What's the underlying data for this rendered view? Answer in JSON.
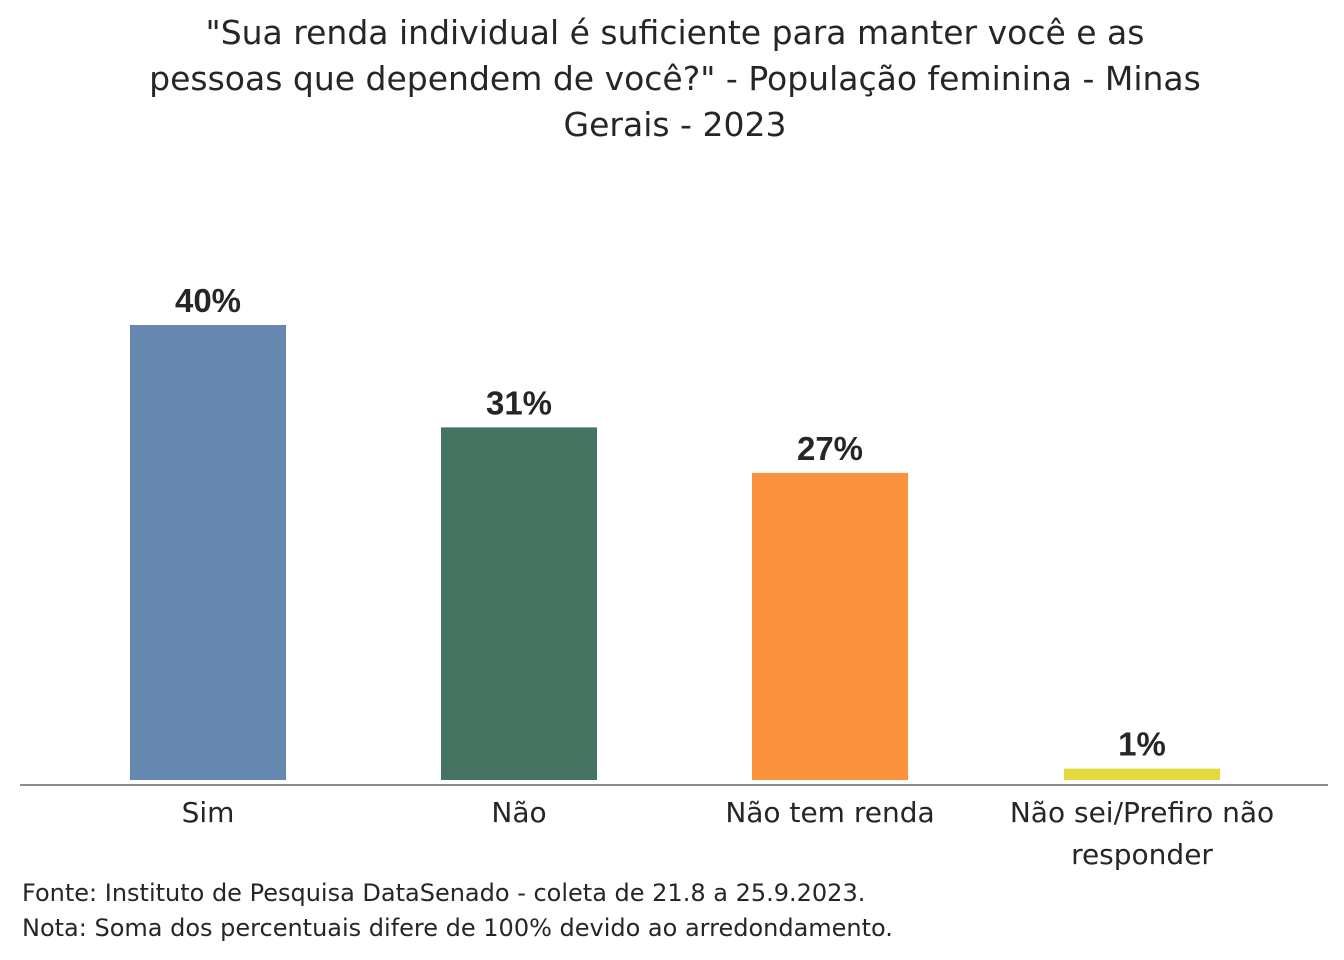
{
  "chart_data": {
    "type": "bar",
    "title_lines": [
      "\"Sua renda individual é suficiente para manter você e as",
      "pessoas que dependem de você?\" - População feminina - Minas",
      "Gerais - 2023"
    ],
    "categories": [
      [
        "Sim"
      ],
      [
        "Não"
      ],
      [
        "Não tem renda"
      ],
      [
        "Não sei/Prefiro não",
        "responder"
      ]
    ],
    "values": [
      40,
      31,
      27,
      1
    ],
    "value_labels": [
      "40%",
      "31%",
      "27%",
      "1%"
    ],
    "colors": [
      "#6688b0",
      "#457562",
      "#fa923e",
      "#e2d93c"
    ],
    "ylim": [
      0,
      40
    ],
    "xlabel": "",
    "ylabel": "",
    "grid": false,
    "legend": "none"
  },
  "footnotes": {
    "source": "Fonte: Instituto de Pesquisa DataSenado - coleta de 21.8 a 25.9.2023.",
    "note": "Nota: Soma dos percentuais difere de 100% devido ao arredondamento."
  }
}
